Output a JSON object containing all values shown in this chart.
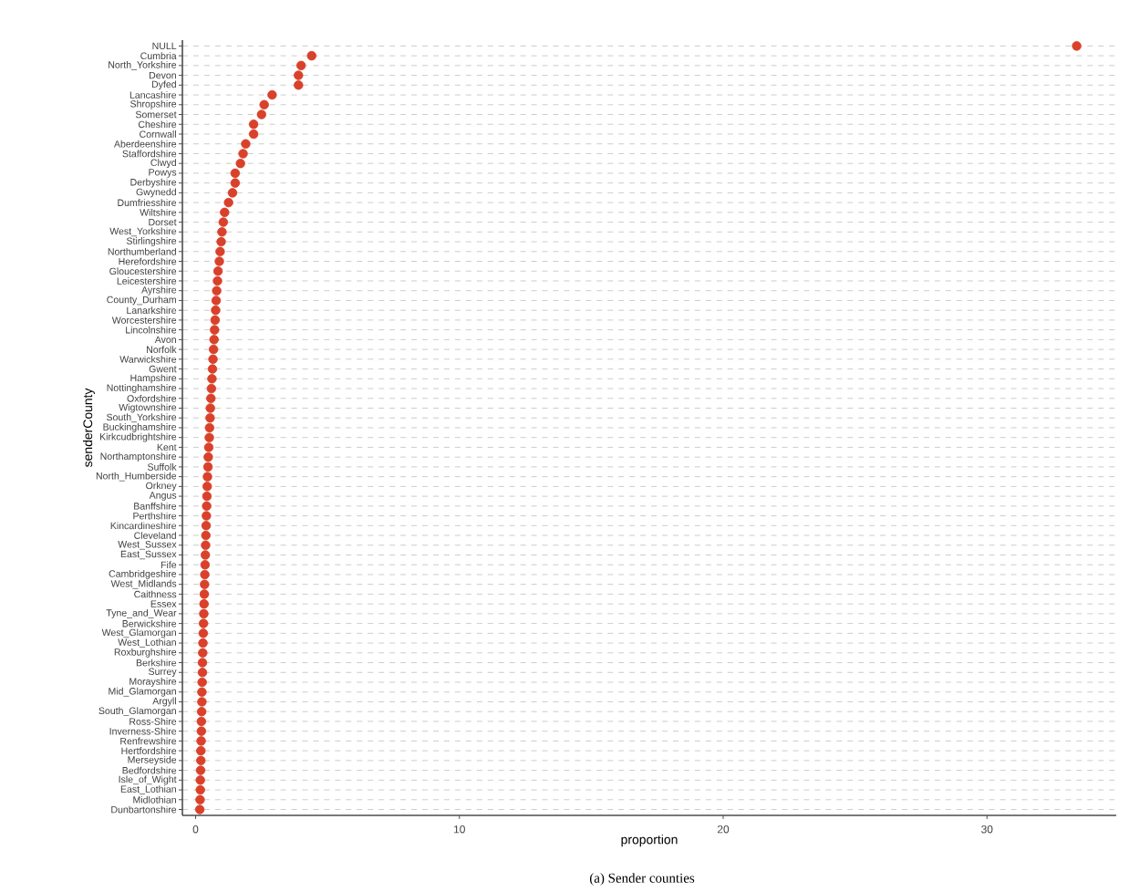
{
  "chart_data": {
    "type": "scatter",
    "categories": [
      "NULL",
      "Cumbria",
      "North_Yorkshire",
      "Devon",
      "Dyfed",
      "Lancashire",
      "Shropshire",
      "Somerset",
      "Cheshire",
      "Cornwall",
      "Aberdeenshire",
      "Staffordshire",
      "Clwyd",
      "Powys",
      "Derbyshire",
      "Gwynedd",
      "Dumfriesshire",
      "Wiltshire",
      "Dorset",
      "West_Yorkshire",
      "Stirlingshire",
      "Northumberland",
      "Herefordshire",
      "Gloucestershire",
      "Leicestershire",
      "Ayrshire",
      "County_Durham",
      "Lanarkshire",
      "Worcestershire",
      "Lincolnshire",
      "Avon",
      "Norfolk",
      "Warwickshire",
      "Gwent",
      "Hampshire",
      "Nottinghamshire",
      "Oxfordshire",
      "Wigtownshire",
      "South_Yorkshire",
      "Buckinghamshire",
      "Kirkcudbrightshire",
      "Kent",
      "Northamptonshire",
      "Suffolk",
      "North_Humberside",
      "Orkney",
      "Angus",
      "Banffshire",
      "Perthshire",
      "Kincardineshire",
      "Cleveland",
      "West_Sussex",
      "East_Sussex",
      "Fife",
      "Cambridgeshire",
      "West_Midlands",
      "Caithness",
      "Essex",
      "Tyne_and_Wear",
      "Berwickshire",
      "West_Glamorgan",
      "West_Lothian",
      "Roxburghshire",
      "Berkshire",
      "Surrey",
      "Morayshire",
      "Mid_Glamorgan",
      "Argyll",
      "South_Glamorgan",
      "Ross-Shire",
      "Inverness-Shire",
      "Renfrewshire",
      "Hertfordshire",
      "Merseyside",
      "Bedfordshire",
      "Isle_of_Wight",
      "East_Lothian",
      "Midlothian",
      "Dunbartonshire"
    ],
    "values": [
      33.4,
      4.4,
      4.0,
      3.9,
      3.9,
      2.9,
      2.6,
      2.5,
      2.2,
      2.2,
      1.9,
      1.8,
      1.7,
      1.5,
      1.5,
      1.4,
      1.25,
      1.1,
      1.05,
      1.0,
      0.97,
      0.93,
      0.9,
      0.85,
      0.83,
      0.8,
      0.78,
      0.76,
      0.74,
      0.72,
      0.7,
      0.68,
      0.66,
      0.64,
      0.62,
      0.6,
      0.58,
      0.56,
      0.55,
      0.53,
      0.52,
      0.5,
      0.48,
      0.47,
      0.45,
      0.44,
      0.43,
      0.42,
      0.41,
      0.4,
      0.39,
      0.38,
      0.37,
      0.36,
      0.35,
      0.34,
      0.33,
      0.32,
      0.31,
      0.3,
      0.29,
      0.28,
      0.27,
      0.26,
      0.26,
      0.25,
      0.24,
      0.24,
      0.23,
      0.22,
      0.22,
      0.21,
      0.2,
      0.2,
      0.19,
      0.18,
      0.18,
      0.17,
      0.16
    ],
    "orientation": "horizontal",
    "color": "#d9412b",
    "xlim": [
      -0.5,
      34.9
    ],
    "xticks": [
      0,
      10,
      20,
      30
    ],
    "xlabel": "proportion",
    "ylabel": "senderCounty",
    "grid": "y",
    "annotations": [
      "(a) Sender counties"
    ]
  }
}
